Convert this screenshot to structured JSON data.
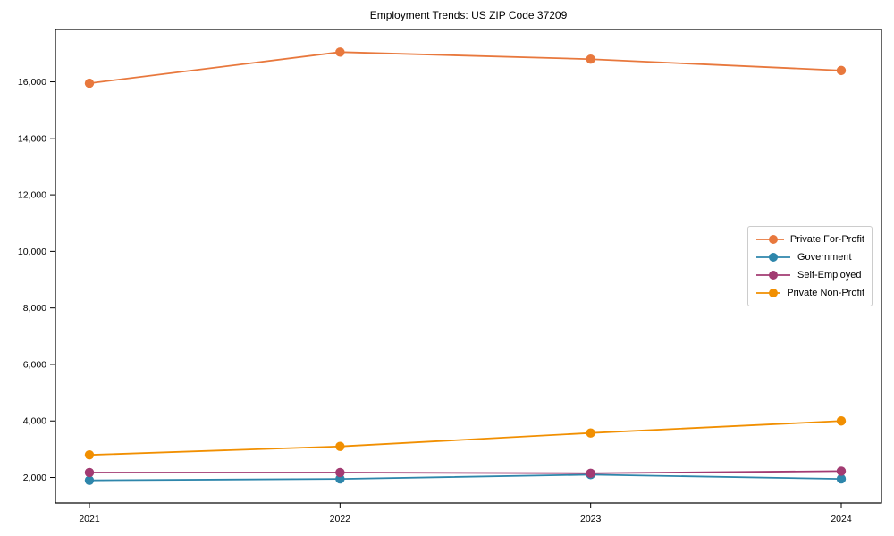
{
  "chart_data": {
    "type": "line",
    "title": "Employment Trends: US ZIP Code 37209",
    "xlabel": "",
    "ylabel": "",
    "x": [
      "2021",
      "2022",
      "2023",
      "2024"
    ],
    "series": [
      {
        "name": "Private For-Profit",
        "color": "#E8783D",
        "values": [
          15950,
          17050,
          16800,
          16400
        ]
      },
      {
        "name": "Government",
        "color": "#2E86AB",
        "values": [
          1900,
          1950,
          2100,
          1950
        ]
      },
      {
        "name": "Self-Employed",
        "color": "#A23B72",
        "values": [
          2175,
          2175,
          2150,
          2225
        ]
      },
      {
        "name": "Private Non-Profit",
        "color": "#F18F01",
        "values": [
          2800,
          3100,
          3575,
          4000
        ]
      }
    ],
    "ylim": [
      1100,
      17850
    ],
    "yticks": [
      2000,
      4000,
      6000,
      8000,
      10000,
      12000,
      14000,
      16000
    ],
    "ytick_labels": [
      "2,000",
      "4,000",
      "6,000",
      "8,000",
      "10,000",
      "12,000",
      "14,000",
      "16,000"
    ],
    "grid": false,
    "legend_position": "center right",
    "marker": "circle",
    "axis_color": "#000000"
  }
}
